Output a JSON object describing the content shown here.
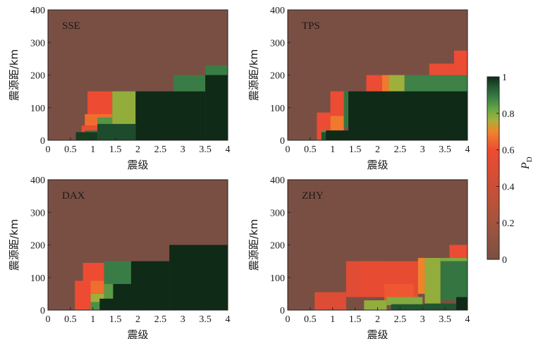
{
  "colors": {
    "bg": "#7a4f43",
    "ramp": [
      {
        "v": 0.0,
        "c": "#7a4f43"
      },
      {
        "v": 0.15,
        "c": "#98543f"
      },
      {
        "v": 0.3,
        "c": "#b8523b"
      },
      {
        "v": 0.45,
        "c": "#d44d36"
      },
      {
        "v": 0.6,
        "c": "#ee4c32"
      },
      {
        "v": 0.7,
        "c": "#f0842c"
      },
      {
        "v": 0.76,
        "c": "#a8b03a"
      },
      {
        "v": 0.82,
        "c": "#6aa844"
      },
      {
        "v": 0.88,
        "c": "#3e8248"
      },
      {
        "v": 0.94,
        "c": "#245c35"
      },
      {
        "v": 1.0,
        "c": "#0f2a17"
      }
    ]
  },
  "chart_data": {
    "type": "heatmap",
    "shared": {
      "xlabel": "震级",
      "ylabel": "震源距/km",
      "xlim": [
        0,
        4
      ],
      "ylim": [
        0,
        400
      ],
      "xticks": [
        "0",
        "0.5",
        "1",
        "1.5",
        "2",
        "2.5",
        "3",
        "3.5",
        "4"
      ],
      "yticks": [
        "0",
        "100",
        "200",
        "300",
        "400"
      ],
      "colorbar": {
        "label": "P",
        "label_sub": "D",
        "range": [
          0,
          1
        ],
        "ticks": [
          "0",
          "0.2",
          "0.4",
          "0.6",
          "0.8",
          "1"
        ]
      }
    },
    "panels": [
      {
        "title": "SSE",
        "default_value": 0,
        "cells": [
          {
            "x0": 1.43,
            "x1": 1.95,
            "y0": 0,
            "y1": 150,
            "v": 0.78
          },
          {
            "x0": 0.88,
            "x1": 1.43,
            "y0": 80,
            "y1": 150,
            "v": 0.6
          },
          {
            "x0": 0.82,
            "x1": 1.43,
            "y0": 45,
            "y1": 80,
            "v": 0.66
          },
          {
            "x0": 0.75,
            "x1": 1.1,
            "y0": 0,
            "y1": 45,
            "v": 0.6
          },
          {
            "x0": 1.1,
            "x1": 1.43,
            "y0": 40,
            "y1": 70,
            "v": 0.85
          },
          {
            "x0": 0.65,
            "x1": 1.0,
            "y0": 0,
            "y1": 25,
            "v": 0.5
          },
          {
            "x0": 1.1,
            "x1": 1.95,
            "y0": 0,
            "y1": 50,
            "v": 0.96
          },
          {
            "x0": 0.82,
            "x1": 1.1,
            "y0": 0,
            "y1": 30,
            "v": 0.9
          },
          {
            "x0": 0.62,
            "x1": 1.1,
            "y0": 0,
            "y1": 25,
            "v": 0.98
          },
          {
            "x0": 1.95,
            "x1": 3.5,
            "y0": 0,
            "y1": 150,
            "v": 1
          },
          {
            "x0": 2.8,
            "x1": 3.5,
            "y0": 150,
            "y1": 200,
            "v": 0.89
          },
          {
            "x0": 3.5,
            "x1": 4,
            "y0": 200,
            "y1": 230,
            "v": 0.89
          },
          {
            "x0": 3.5,
            "x1": 4,
            "y0": 0,
            "y1": 200,
            "v": 1
          }
        ]
      },
      {
        "title": "TPS",
        "default_value": 0,
        "cells": [
          {
            "x0": 1.75,
            "x1": 2.1,
            "y0": 150,
            "y1": 200,
            "v": 0.58
          },
          {
            "x0": 2.1,
            "x1": 2.25,
            "y0": 150,
            "y1": 200,
            "v": 0.68
          },
          {
            "x0": 2.25,
            "x1": 2.6,
            "y0": 150,
            "y1": 200,
            "v": 0.77
          },
          {
            "x0": 2.6,
            "x1": 4,
            "y0": 150,
            "y1": 200,
            "v": 0.88
          },
          {
            "x0": 3.15,
            "x1": 3.7,
            "y0": 200,
            "y1": 235,
            "v": 0.58
          },
          {
            "x0": 3.7,
            "x1": 4,
            "y0": 200,
            "y1": 275,
            "v": 0.58
          },
          {
            "x0": 0.95,
            "x1": 1.3,
            "y0": 75,
            "y1": 150,
            "v": 0.58
          },
          {
            "x0": 0.65,
            "x1": 0.95,
            "y0": 0,
            "y1": 85,
            "v": 0.58
          },
          {
            "x0": 0.95,
            "x1": 1.25,
            "y0": 30,
            "y1": 75,
            "v": 0.68
          },
          {
            "x0": 1.25,
            "x1": 1.35,
            "y0": 40,
            "y1": 150,
            "v": 0.9
          },
          {
            "x0": 0.75,
            "x1": 0.95,
            "y0": 0,
            "y1": 30,
            "v": 0.85
          },
          {
            "x0": 0.75,
            "x1": 1.1,
            "y0": 0,
            "y1": 25,
            "v": 0.95
          },
          {
            "x0": 0.85,
            "x1": 1.35,
            "y0": 0,
            "y1": 30,
            "v": 1
          },
          {
            "x0": 1.35,
            "x1": 4,
            "y0": 0,
            "y1": 150,
            "v": 1
          }
        ]
      },
      {
        "title": "DAX",
        "default_value": 0,
        "cells": [
          {
            "x0": 0.78,
            "x1": 1.25,
            "y0": 90,
            "y1": 145,
            "v": 0.6
          },
          {
            "x0": 0.78,
            "x1": 1.25,
            "y0": 50,
            "y1": 90,
            "v": 0.66
          },
          {
            "x0": 0.6,
            "x1": 0.95,
            "y0": 0,
            "y1": 90,
            "v": 0.6
          },
          {
            "x0": 0.95,
            "x1": 1.25,
            "y0": 20,
            "y1": 50,
            "v": 0.77
          },
          {
            "x0": 1.25,
            "x1": 1.85,
            "y0": 80,
            "y1": 150,
            "v": 0.89
          },
          {
            "x0": 1.25,
            "x1": 1.45,
            "y0": 35,
            "y1": 80,
            "v": 0.84
          },
          {
            "x0": 0.95,
            "x1": 1.15,
            "y0": 0,
            "y1": 25,
            "v": 0.86
          },
          {
            "x0": 1.15,
            "x1": 1.45,
            "y0": 0,
            "y1": 35,
            "v": 1
          },
          {
            "x0": 1.45,
            "x1": 1.85,
            "y0": 0,
            "y1": 80,
            "v": 1
          },
          {
            "x0": 1.85,
            "x1": 2.7,
            "y0": 0,
            "y1": 150,
            "v": 1
          },
          {
            "x0": 2.7,
            "x1": 4,
            "y0": 0,
            "y1": 200,
            "v": 1
          }
        ]
      },
      {
        "title": "ZHY",
        "default_value": 0,
        "cells": [
          {
            "x0": 0.6,
            "x1": 1.3,
            "y0": 0,
            "y1": 55,
            "v": 0.5
          },
          {
            "x0": 1.3,
            "x1": 2.2,
            "y0": 40,
            "y1": 150,
            "v": 0.52
          },
          {
            "x0": 1.6,
            "x1": 2.9,
            "y0": 40,
            "y1": 150,
            "v": 0.56
          },
          {
            "x0": 2.15,
            "x1": 2.8,
            "y0": 30,
            "y1": 80,
            "v": 0.62
          },
          {
            "x0": 2.9,
            "x1": 3.05,
            "y0": 50,
            "y1": 160,
            "v": 0.7
          },
          {
            "x0": 3.05,
            "x1": 3.4,
            "y0": 20,
            "y1": 160,
            "v": 0.78
          },
          {
            "x0": 3.4,
            "x1": 4,
            "y0": 150,
            "y1": 160,
            "v": 0.8
          },
          {
            "x0": 3.4,
            "x1": 4,
            "y0": 30,
            "y1": 150,
            "v": 0.9
          },
          {
            "x0": 3.6,
            "x1": 4,
            "y0": 160,
            "y1": 200,
            "v": 0.58
          },
          {
            "x0": 1.7,
            "x1": 2.2,
            "y0": 0,
            "y1": 30,
            "v": 0.78
          },
          {
            "x0": 2.2,
            "x1": 3.0,
            "y0": 15,
            "y1": 40,
            "v": 0.8
          },
          {
            "x0": 2.3,
            "x1": 3.05,
            "y0": 0,
            "y1": 18,
            "v": 0.95
          },
          {
            "x0": 3.05,
            "x1": 3.75,
            "y0": 0,
            "y1": 20,
            "v": 0.95
          },
          {
            "x0": 3.75,
            "x1": 4,
            "y0": 0,
            "y1": 40,
            "v": 1
          }
        ]
      }
    ]
  }
}
